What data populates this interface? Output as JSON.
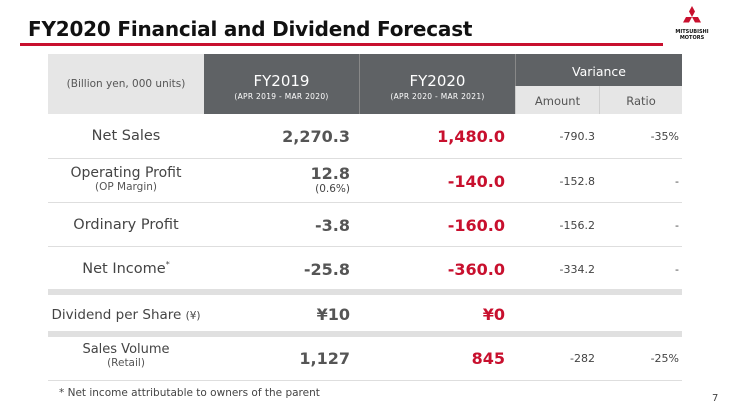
{
  "title": "FY2020 Financial and Dividend Forecast",
  "logo": {
    "text_line1": "MITSUBISHI",
    "text_line2": "MOTORS",
    "color": "#c8102e"
  },
  "table": {
    "unit_label": "(Billion yen, 000 units)",
    "fy2019": {
      "label": "FY2019",
      "period": "(APR 2019 - MAR 2020)"
    },
    "fy2020": {
      "label": "FY2020",
      "period": "(APR 2020 - MAR 2021)"
    },
    "variance": {
      "label": "Variance",
      "amount": "Amount",
      "ratio": "Ratio"
    },
    "rows": [
      {
        "label": "Net Sales",
        "sublabel": "",
        "fy2019": "2,270.3",
        "fy2019_sub": "",
        "fy2020": "1,480.0",
        "amount": "-790.3",
        "ratio": "-35%"
      },
      {
        "label": "Operating Profit",
        "sublabel": "(OP Margin)",
        "fy2019": "12.8",
        "fy2019_sub": "(0.6%)",
        "fy2020": "-140.0",
        "amount": "-152.8",
        "ratio": "-"
      },
      {
        "label": "Ordinary Profit",
        "sublabel": "",
        "fy2019": "-3.8",
        "fy2019_sub": "",
        "fy2020": "-160.0",
        "amount": "-156.2",
        "ratio": "-"
      },
      {
        "label": "Net Income",
        "label_sup": "*",
        "sublabel": "",
        "fy2019": "-25.8",
        "fy2019_sub": "",
        "fy2020": "-360.0",
        "amount": "-334.2",
        "ratio": "-"
      },
      {
        "label": "Dividend per Share",
        "label_unit": "(¥)",
        "sublabel": "",
        "fy2019": "¥10",
        "fy2019_sub": "",
        "fy2020": "¥0",
        "amount": "",
        "ratio": ""
      },
      {
        "label": "Sales Volume",
        "sublabel": "(Retail)",
        "fy2019": "1,127",
        "fy2019_sub": "",
        "fy2020": "845",
        "amount": "-282",
        "ratio": "-25%"
      }
    ]
  },
  "footnote": "* Net income attributable to owners of the parent",
  "page_number": "7"
}
